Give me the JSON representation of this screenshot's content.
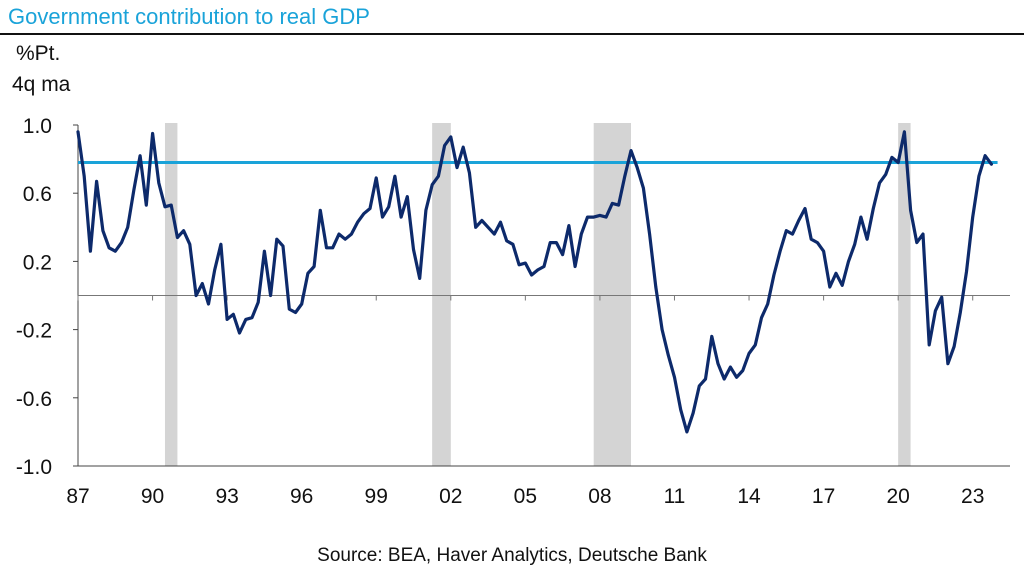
{
  "chart_data": {
    "type": "line",
    "title": "Government contribution to real GDP",
    "ylabel_lines": [
      "%Pt.",
      "4q ma"
    ],
    "source": "Source: BEA, Haver Analytics, Deutsche Bank",
    "ylim": [
      -1.0,
      1.0
    ],
    "yticks": [
      1.0,
      0.6,
      0.2,
      -0.2,
      -0.6,
      -1.0
    ],
    "ytick_labels": [
      "1.0",
      "0.6",
      "0.2",
      "-0.2",
      "-0.6",
      "-1.0"
    ],
    "xlim": [
      1987.0,
      2024.5
    ],
    "xticks": [
      1987,
      1990,
      1993,
      1996,
      1999,
      2002,
      2005,
      2008,
      2011,
      2014,
      2017,
      2020,
      2023
    ],
    "xtick_labels": [
      "87",
      "90",
      "93",
      "96",
      "99",
      "02",
      "05",
      "08",
      "11",
      "14",
      "17",
      "20",
      "23"
    ],
    "grid": false,
    "reference_line": {
      "y": 0.78,
      "color": "#1aa3d9"
    },
    "recessions": [
      [
        1990.5,
        1991.0
      ],
      [
        2001.25,
        2002.0
      ],
      [
        2007.75,
        2009.25
      ],
      [
        2020.0,
        2020.5
      ]
    ],
    "series": [
      {
        "color": "#0d2a6b",
        "points": [
          [
            1987.0,
            0.96
          ],
          [
            1987.25,
            0.7
          ],
          [
            1987.5,
            0.26
          ],
          [
            1987.75,
            0.67
          ],
          [
            1988.0,
            0.38
          ],
          [
            1988.25,
            0.28
          ],
          [
            1988.5,
            0.26
          ],
          [
            1988.75,
            0.31
          ],
          [
            1989.0,
            0.4
          ],
          [
            1989.25,
            0.62
          ],
          [
            1989.5,
            0.82
          ],
          [
            1989.75,
            0.53
          ],
          [
            1990.0,
            0.95
          ],
          [
            1990.25,
            0.66
          ],
          [
            1990.5,
            0.52
          ],
          [
            1990.75,
            0.53
          ],
          [
            1991.0,
            0.34
          ],
          [
            1991.25,
            0.38
          ],
          [
            1991.5,
            0.3
          ],
          [
            1991.75,
            0.0
          ],
          [
            1992.0,
            0.07
          ],
          [
            1992.25,
            -0.05
          ],
          [
            1992.5,
            0.15
          ],
          [
            1992.75,
            0.3
          ],
          [
            1993.0,
            -0.14
          ],
          [
            1993.25,
            -0.11
          ],
          [
            1993.5,
            -0.22
          ],
          [
            1993.75,
            -0.14
          ],
          [
            1994.0,
            -0.13
          ],
          [
            1994.25,
            -0.04
          ],
          [
            1994.5,
            0.26
          ],
          [
            1994.75,
            0.0
          ],
          [
            1995.0,
            0.33
          ],
          [
            1995.25,
            0.29
          ],
          [
            1995.5,
            -0.08
          ],
          [
            1995.75,
            -0.1
          ],
          [
            1996.0,
            -0.05
          ],
          [
            1996.25,
            0.13
          ],
          [
            1996.5,
            0.17
          ],
          [
            1996.75,
            0.5
          ],
          [
            1997.0,
            0.28
          ],
          [
            1997.25,
            0.28
          ],
          [
            1997.5,
            0.36
          ],
          [
            1997.75,
            0.33
          ],
          [
            1998.0,
            0.36
          ],
          [
            1998.25,
            0.43
          ],
          [
            1998.5,
            0.48
          ],
          [
            1998.75,
            0.51
          ],
          [
            1999.0,
            0.69
          ],
          [
            1999.25,
            0.46
          ],
          [
            1999.5,
            0.52
          ],
          [
            1999.75,
            0.7
          ],
          [
            2000.0,
            0.46
          ],
          [
            2000.25,
            0.58
          ],
          [
            2000.5,
            0.27
          ],
          [
            2000.75,
            0.1
          ],
          [
            2001.0,
            0.5
          ],
          [
            2001.25,
            0.65
          ],
          [
            2001.5,
            0.7
          ],
          [
            2001.75,
            0.88
          ],
          [
            2002.0,
            0.93
          ],
          [
            2002.25,
            0.75
          ],
          [
            2002.5,
            0.87
          ],
          [
            2002.75,
            0.72
          ],
          [
            2003.0,
            0.4
          ],
          [
            2003.25,
            0.44
          ],
          [
            2003.5,
            0.4
          ],
          [
            2003.75,
            0.36
          ],
          [
            2004.0,
            0.43
          ],
          [
            2004.25,
            0.32
          ],
          [
            2004.5,
            0.3
          ],
          [
            2004.75,
            0.18
          ],
          [
            2005.0,
            0.19
          ],
          [
            2005.25,
            0.12
          ],
          [
            2005.5,
            0.15
          ],
          [
            2005.75,
            0.17
          ],
          [
            2006.0,
            0.31
          ],
          [
            2006.25,
            0.31
          ],
          [
            2006.5,
            0.24
          ],
          [
            2006.75,
            0.41
          ],
          [
            2007.0,
            0.17
          ],
          [
            2007.25,
            0.36
          ],
          [
            2007.5,
            0.46
          ],
          [
            2007.75,
            0.46
          ],
          [
            2008.0,
            0.47
          ],
          [
            2008.25,
            0.46
          ],
          [
            2008.5,
            0.54
          ],
          [
            2008.75,
            0.53
          ],
          [
            2009.0,
            0.7
          ],
          [
            2009.25,
            0.85
          ],
          [
            2009.5,
            0.75
          ],
          [
            2009.75,
            0.63
          ],
          [
            2010.0,
            0.36
          ],
          [
            2010.25,
            0.05
          ],
          [
            2010.5,
            -0.2
          ],
          [
            2010.75,
            -0.35
          ],
          [
            2011.0,
            -0.48
          ],
          [
            2011.25,
            -0.67
          ],
          [
            2011.5,
            -0.8
          ],
          [
            2011.75,
            -0.69
          ],
          [
            2012.0,
            -0.53
          ],
          [
            2012.25,
            -0.49
          ],
          [
            2012.5,
            -0.24
          ],
          [
            2012.75,
            -0.4
          ],
          [
            2013.0,
            -0.49
          ],
          [
            2013.25,
            -0.42
          ],
          [
            2013.5,
            -0.48
          ],
          [
            2013.75,
            -0.44
          ],
          [
            2014.0,
            -0.34
          ],
          [
            2014.25,
            -0.29
          ],
          [
            2014.5,
            -0.13
          ],
          [
            2014.75,
            -0.05
          ],
          [
            2015.0,
            0.12
          ],
          [
            2015.25,
            0.26
          ],
          [
            2015.5,
            0.38
          ],
          [
            2015.75,
            0.36
          ],
          [
            2016.0,
            0.44
          ],
          [
            2016.25,
            0.51
          ],
          [
            2016.5,
            0.33
          ],
          [
            2016.75,
            0.31
          ],
          [
            2017.0,
            0.26
          ],
          [
            2017.25,
            0.05
          ],
          [
            2017.5,
            0.13
          ],
          [
            2017.75,
            0.06
          ],
          [
            2018.0,
            0.2
          ],
          [
            2018.25,
            0.3
          ],
          [
            2018.5,
            0.46
          ],
          [
            2018.75,
            0.33
          ],
          [
            2019.0,
            0.51
          ],
          [
            2019.25,
            0.66
          ],
          [
            2019.5,
            0.71
          ],
          [
            2019.75,
            0.81
          ],
          [
            2020.0,
            0.78
          ],
          [
            2020.25,
            0.96
          ],
          [
            2020.5,
            0.5
          ],
          [
            2020.75,
            0.31
          ],
          [
            2021.0,
            0.36
          ],
          [
            2021.25,
            -0.29
          ],
          [
            2021.5,
            -0.09
          ],
          [
            2021.75,
            -0.01
          ],
          [
            2022.0,
            -0.4
          ],
          [
            2022.25,
            -0.3
          ],
          [
            2022.5,
            -0.1
          ],
          [
            2022.75,
            0.14
          ],
          [
            2023.0,
            0.46
          ],
          [
            2023.25,
            0.7
          ],
          [
            2023.5,
            0.82
          ],
          [
            2023.75,
            0.77
          ]
        ]
      }
    ]
  }
}
